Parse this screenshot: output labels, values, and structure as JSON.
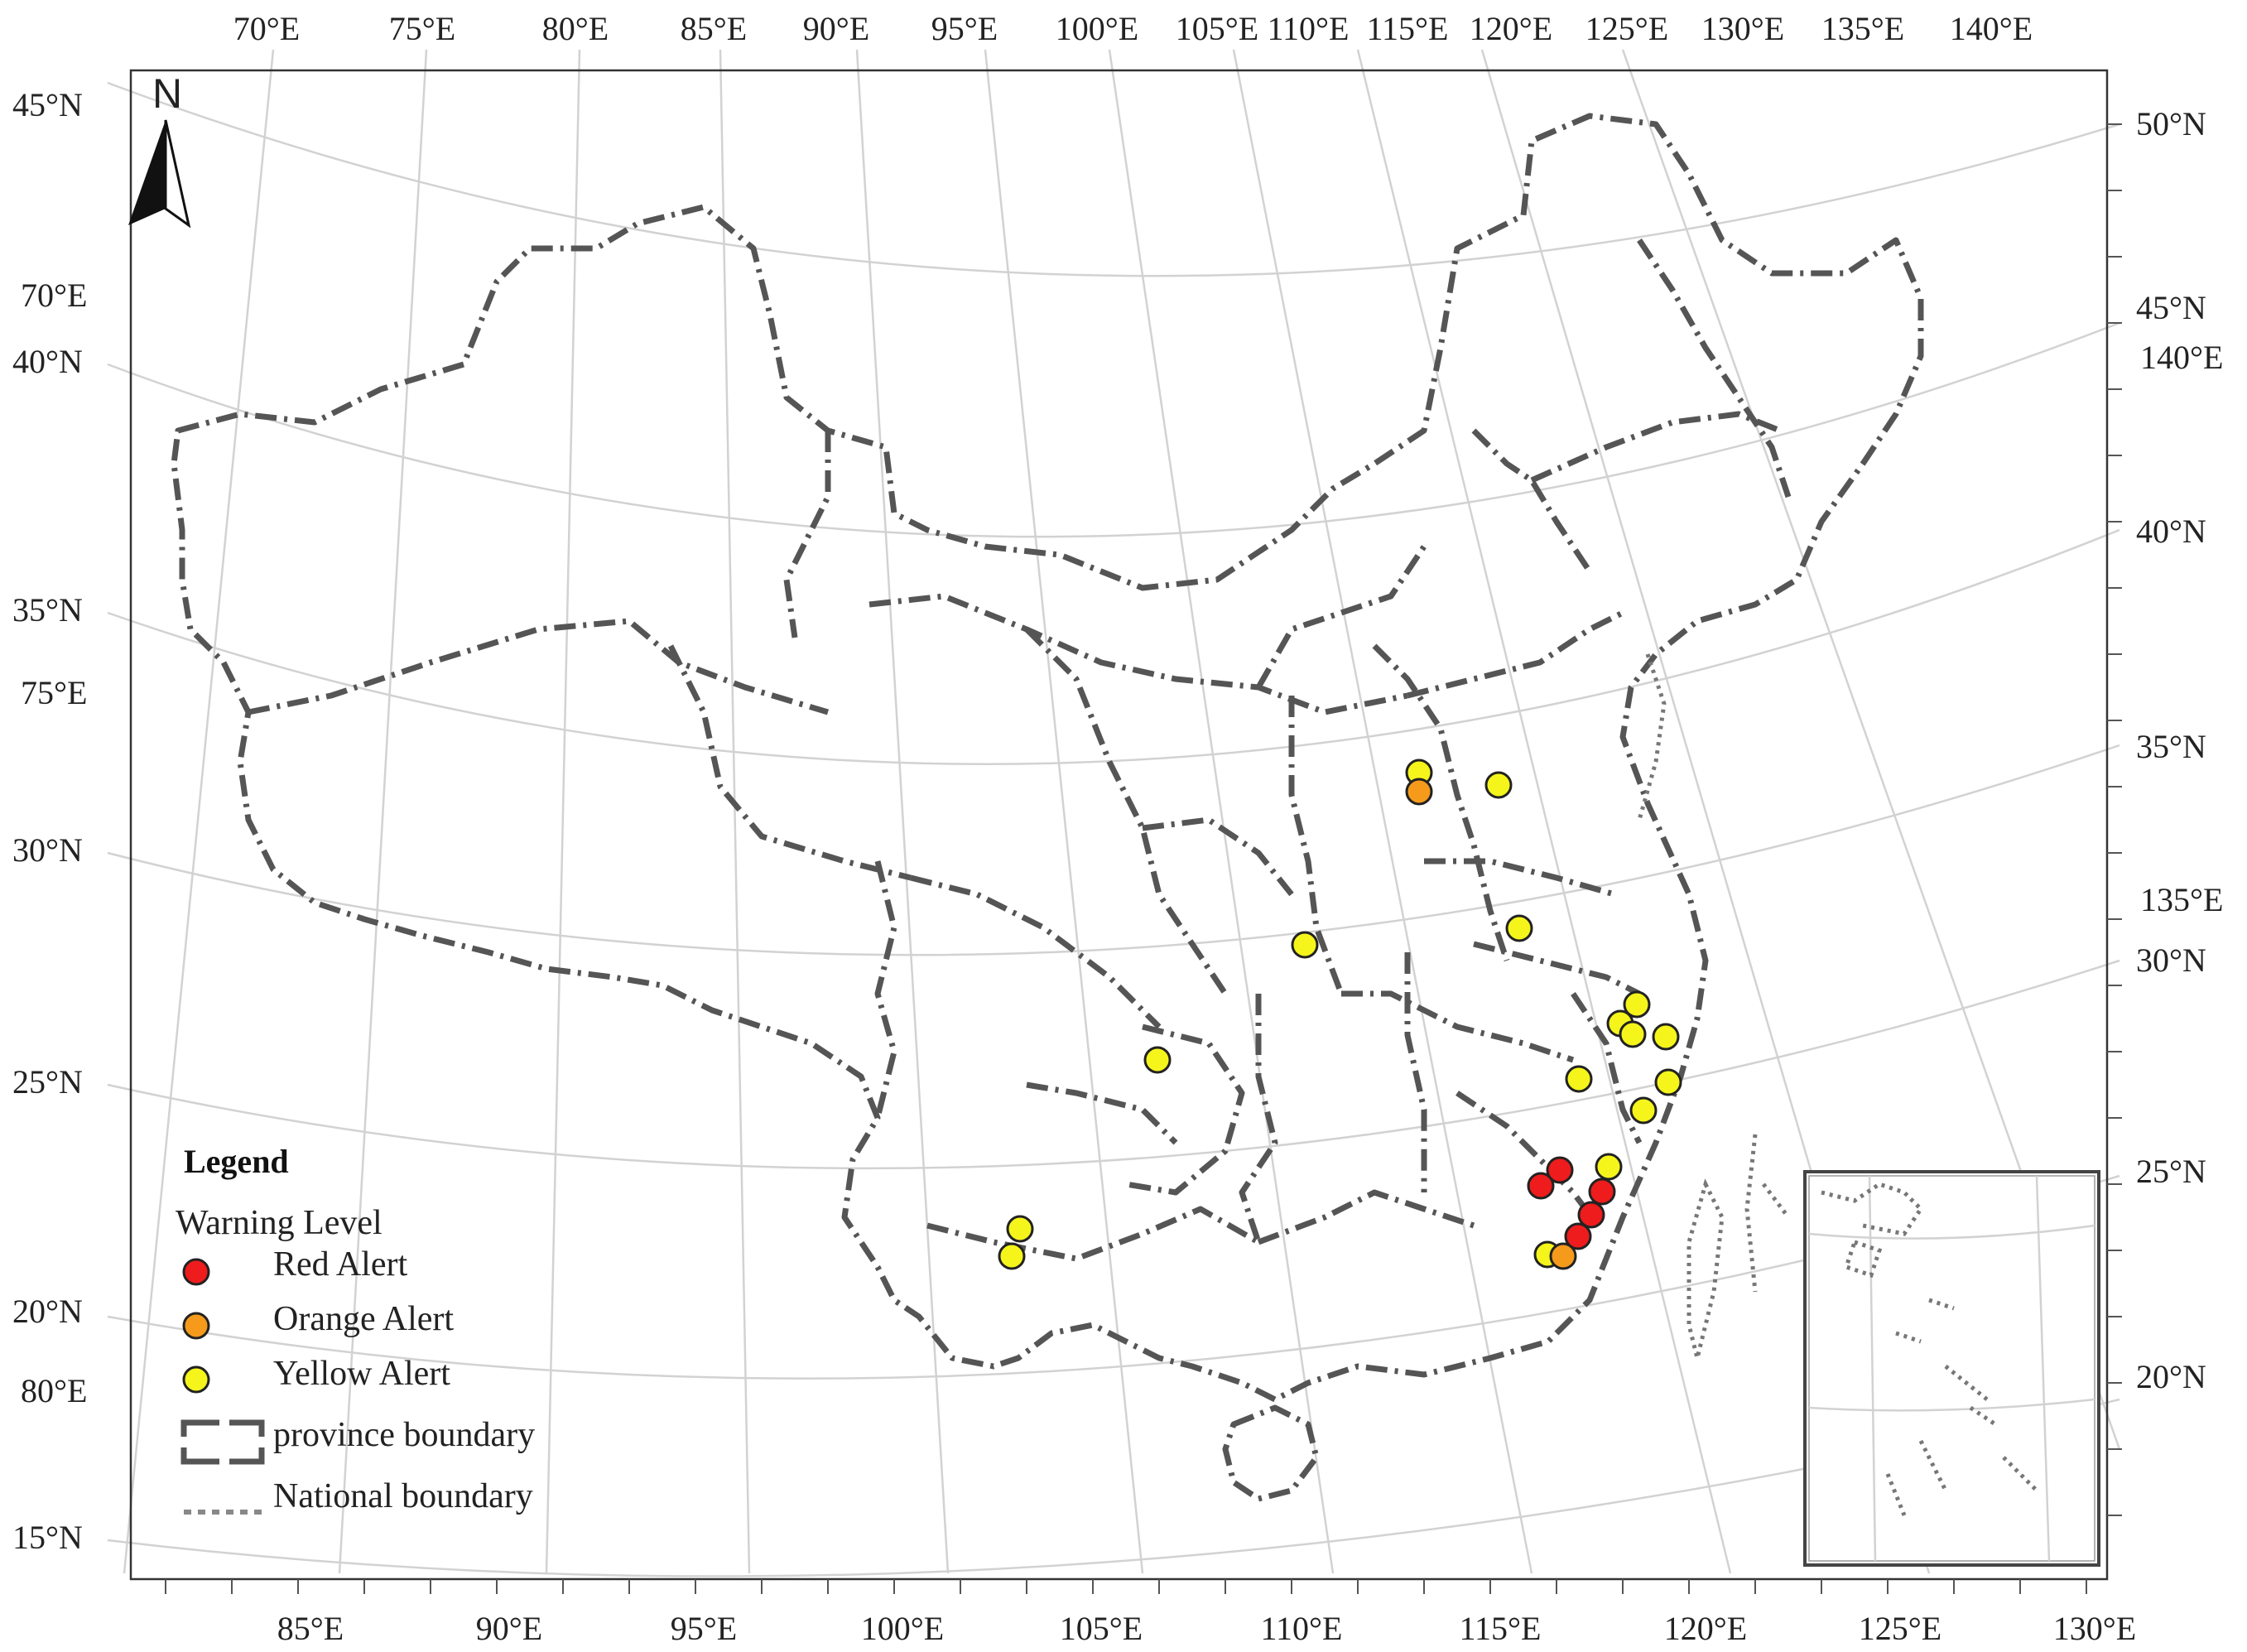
{
  "top_lon_labels": [
    "70°E",
    "75°E",
    "80°E",
    "85°E",
    "90°E",
    "95°E",
    "100°E",
    "105°E",
    "110°E",
    "115°E",
    "120°E",
    "125°E",
    "130°E",
    "135°E",
    "140°E"
  ],
  "bottom_lon_labels": [
    "85°E",
    "90°E",
    "95°E",
    "100°E",
    "105°E",
    "110°E",
    "115°E",
    "120°E",
    "125°E",
    "130°E"
  ],
  "left_labels": [
    "45°N",
    "70°E",
    "40°N",
    "35°N",
    "75°E",
    "30°N",
    "25°N",
    "20°N",
    "80°E",
    "15°N"
  ],
  "right_labels": [
    "50°N",
    "45°N",
    "140°E",
    "40°N",
    "35°N",
    "135°E",
    "30°N",
    "25°N",
    "20°N"
  ],
  "north_arrow": {
    "label": "N",
    "icon": "north-arrow-icon"
  },
  "legend": {
    "title": "Legend",
    "subtitle": "Warning Level",
    "items": [
      {
        "label": "Red Alert",
        "color": "#ee1c1c"
      },
      {
        "label": "Orange Alert",
        "color": "#f59a1b"
      },
      {
        "label": "Yellow Alert",
        "color": "#f5f51c"
      },
      {
        "label": "province boundary"
      },
      {
        "label": "National boundary"
      }
    ]
  },
  "colors": {
    "red": "#ee1c1c",
    "orange": "#f59a1b",
    "yellow": "#f5f51c",
    "boundary": "#555555",
    "graticule": "#d2d2d2"
  }
}
